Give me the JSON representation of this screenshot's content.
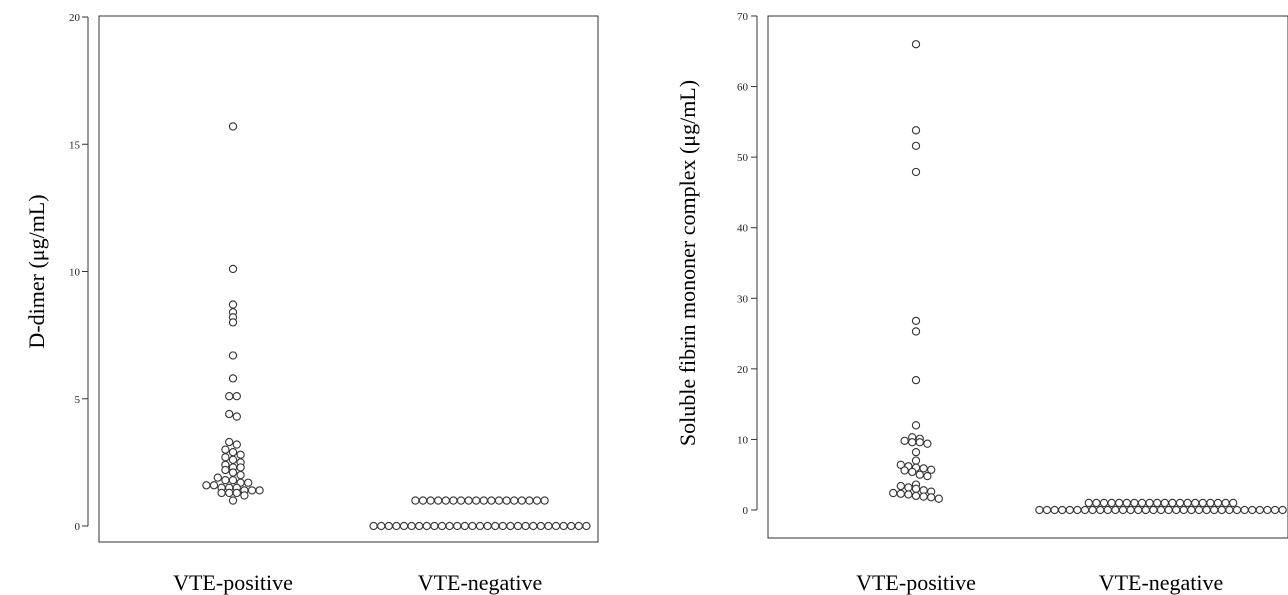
{
  "chart_data": [
    {
      "type": "scatter",
      "ylabel": "D-dimer (μg/mL)",
      "categories": [
        "VTE-positive",
        "VTE-negative"
      ],
      "ylim": [
        0,
        20
      ],
      "yticks": [
        0,
        5,
        10,
        15,
        20
      ],
      "grid": false,
      "series": [
        {
          "category": "VTE-positive",
          "values": [
            15.7,
            10.1,
            8.7,
            8.4,
            8.2,
            8.0,
            6.7,
            5.8,
            5.1,
            5.1,
            4.4,
            4.3,
            3.3,
            3.2,
            3.0,
            2.9,
            2.8,
            2.7,
            2.6,
            2.5,
            2.4,
            2.3,
            2.3,
            2.2,
            2.1,
            2.0,
            1.9,
            1.8,
            1.8,
            1.7,
            1.7,
            1.6,
            1.6,
            1.5,
            1.5,
            1.5,
            1.4,
            1.4,
            1.4,
            1.3,
            1.3,
            1.3,
            1.2,
            1.0
          ]
        },
        {
          "category": "VTE-negative",
          "values": [
            1,
            1,
            1,
            1,
            1,
            1,
            1,
            1,
            1,
            1,
            1,
            1,
            1,
            1,
            1,
            1,
            1,
            1,
            0,
            0,
            0,
            0,
            0,
            0,
            0,
            0,
            0,
            0,
            0,
            0,
            0,
            0,
            0,
            0,
            0,
            0,
            0,
            0,
            0,
            0,
            0,
            0,
            0,
            0,
            0,
            0,
            0
          ]
        }
      ]
    },
    {
      "type": "scatter",
      "ylabel": "Soluble fibrin mononer complex (μg/mL)",
      "categories": [
        "VTE-positive",
        "VTE-negative"
      ],
      "ylim": [
        0,
        70
      ],
      "yticks": [
        0,
        10,
        20,
        30,
        40,
        50,
        60,
        70
      ],
      "grid": false,
      "series": [
        {
          "category": "VTE-positive",
          "values": [
            66,
            53.8,
            51.6,
            47.9,
            26.8,
            25.3,
            18.4,
            12.0,
            10.3,
            10.1,
            9.8,
            9.6,
            9.6,
            9.4,
            8.2,
            7.0,
            6.4,
            6.2,
            6.0,
            5.9,
            5.7,
            5.6,
            5.4,
            5.0,
            4.8,
            3.6,
            3.4,
            3.2,
            3.0,
            2.8,
            2.6,
            2.4,
            2.3,
            2.2,
            2.0,
            1.9,
            1.8,
            1.6
          ]
        },
        {
          "category": "VTE-negative",
          "values": [
            1,
            1,
            1,
            1,
            1,
            1,
            1,
            1,
            1,
            1,
            1,
            1,
            1,
            1,
            1,
            1,
            1,
            1,
            1,
            1,
            0,
            0,
            0,
            0,
            0,
            0,
            0,
            0,
            0,
            0,
            0,
            0,
            0,
            0,
            0,
            0,
            0,
            0,
            0,
            0,
            0,
            0,
            0,
            0,
            0,
            0,
            0,
            0,
            0,
            0,
            0,
            0,
            0
          ]
        }
      ]
    }
  ]
}
